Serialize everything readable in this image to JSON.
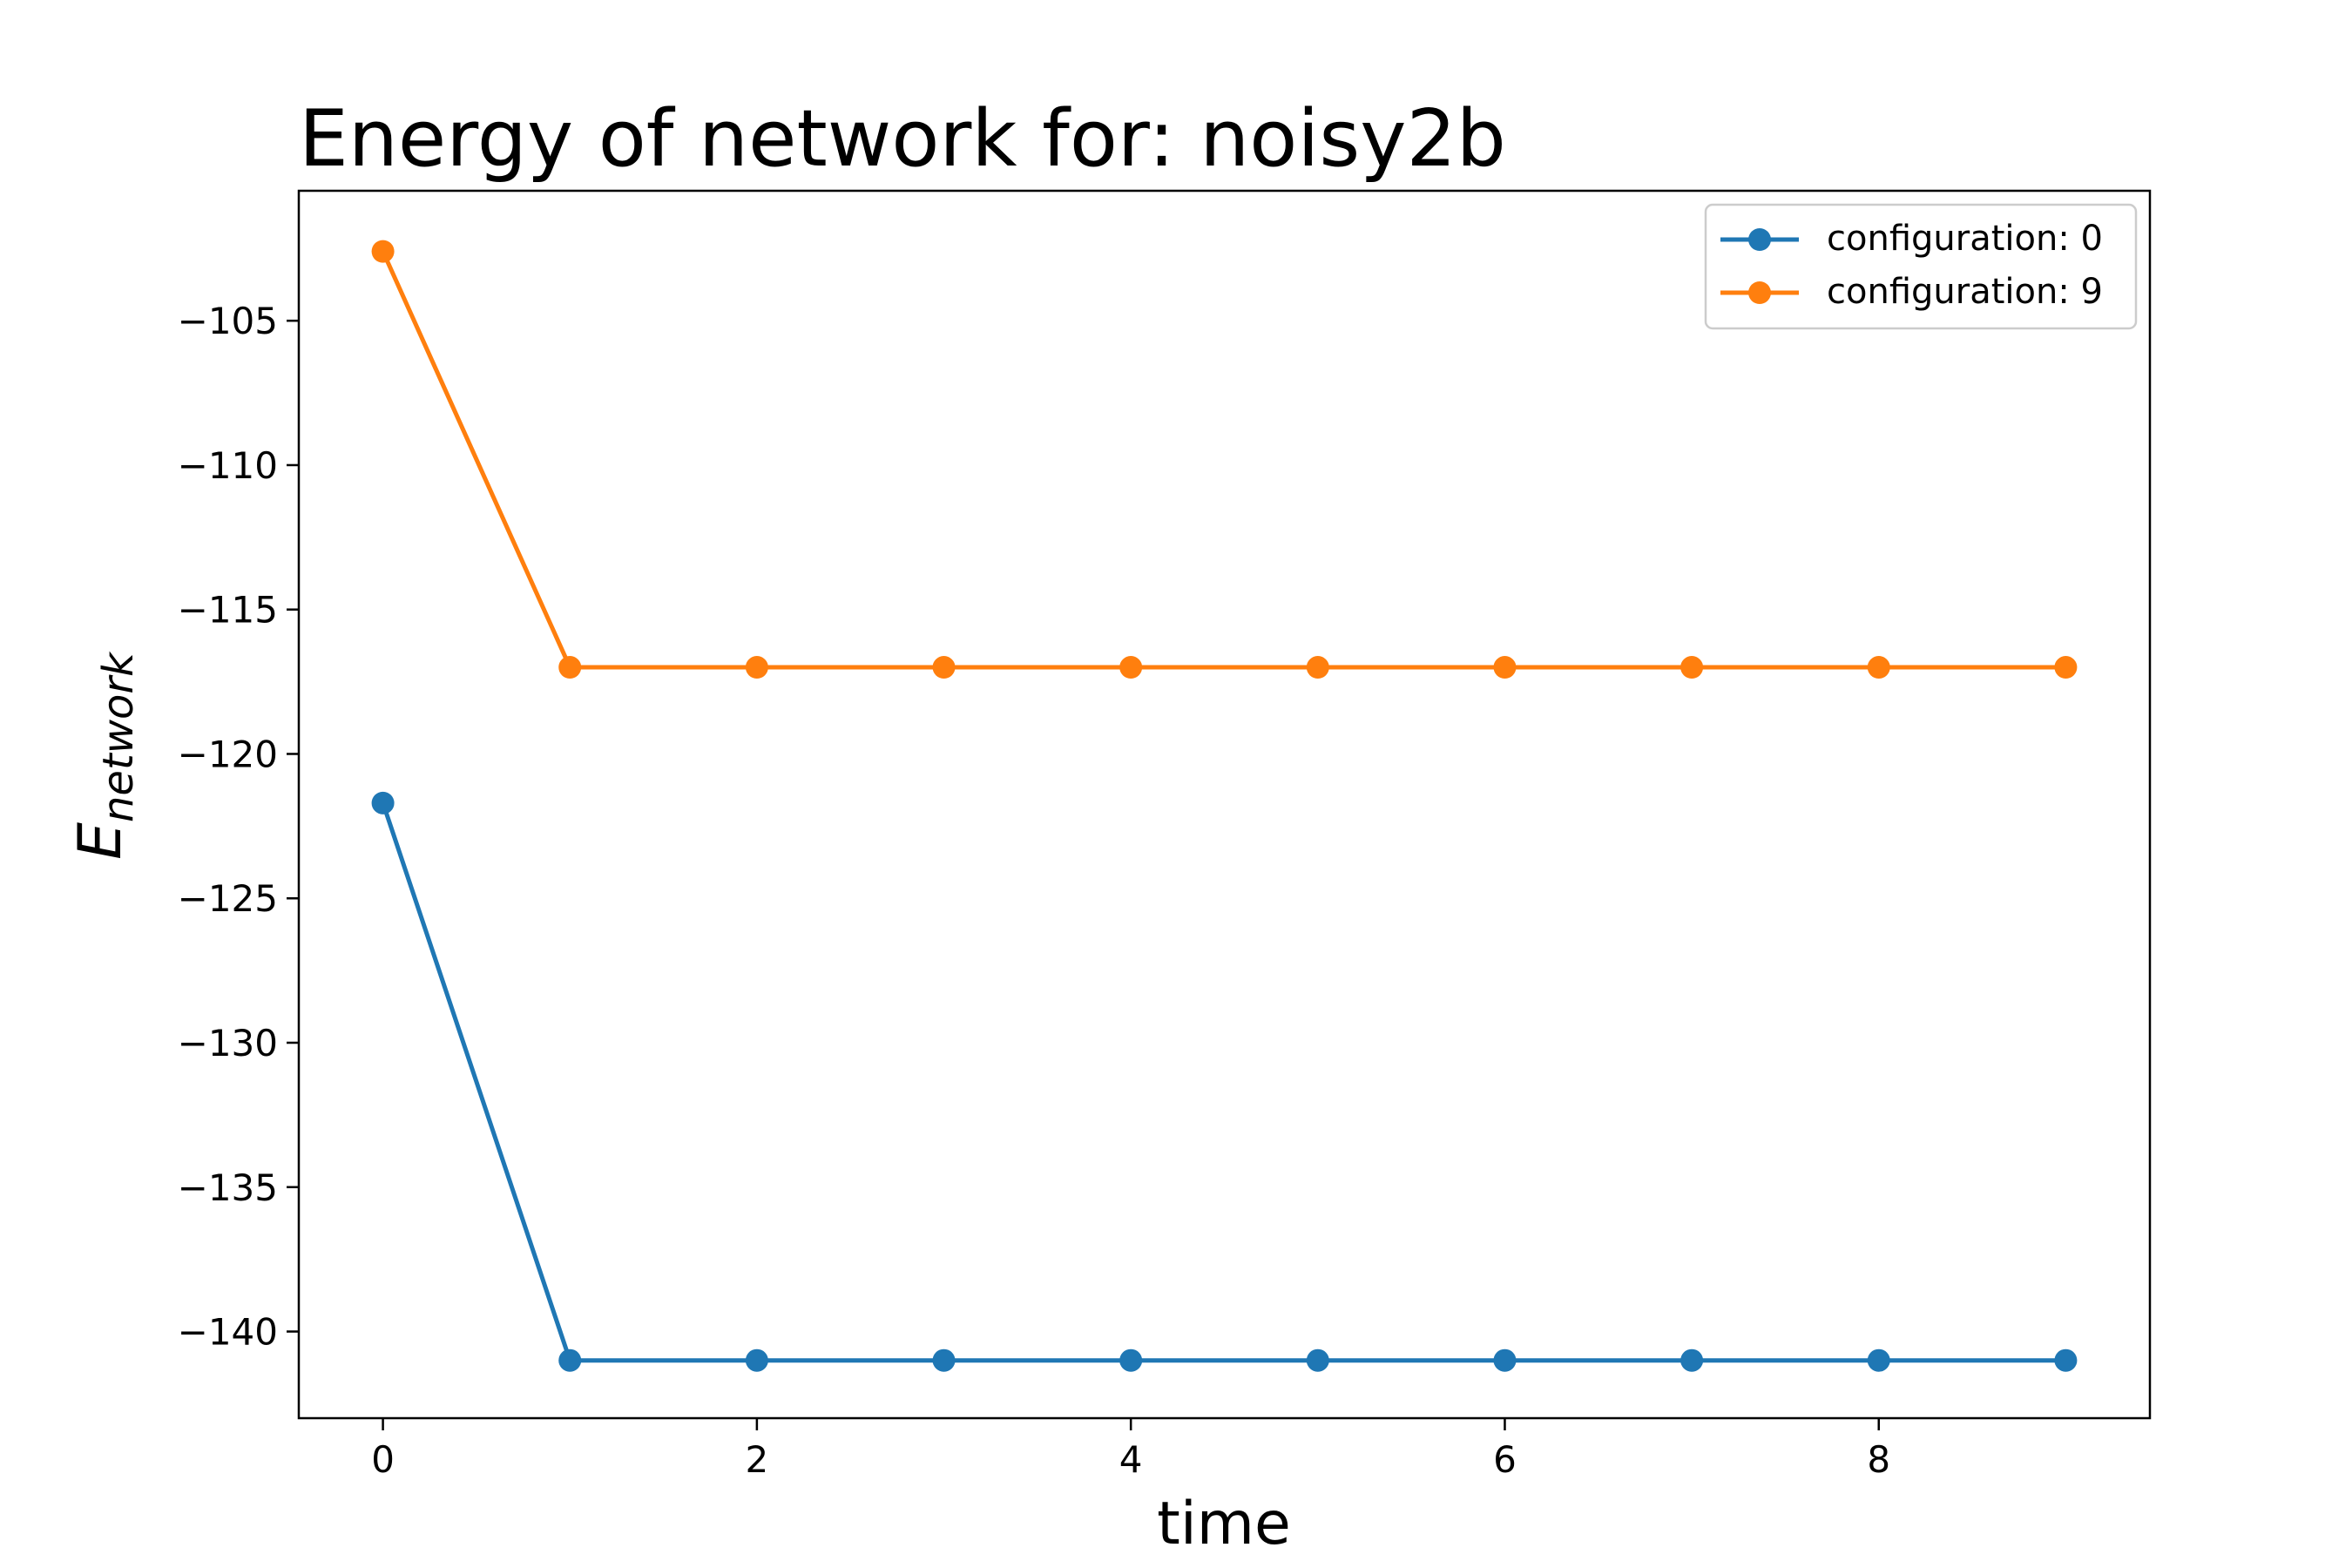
{
  "chart_data": {
    "type": "line",
    "title": "Energy of network for: noisy2b",
    "xlabel": "time",
    "ylabel_main": "E",
    "ylabel_sub": "network",
    "x": [
      0,
      1,
      2,
      3,
      4,
      5,
      6,
      7,
      8,
      9
    ],
    "xlim": [
      -0.45,
      9.45
    ],
    "ylim": [
      -143.0,
      -100.5
    ],
    "xticks": [
      0,
      2,
      4,
      6,
      8
    ],
    "yticks": [
      -105,
      -110,
      -115,
      -120,
      -125,
      -130,
      -135,
      -140
    ],
    "grid": false,
    "legend_position": "top-right",
    "series": [
      {
        "name": "configuration: 0",
        "color": "#1f77b4",
        "values": [
          -121.7,
          -141,
          -141,
          -141,
          -141,
          -141,
          -141,
          -141,
          -141,
          -141
        ]
      },
      {
        "name": "configuration: 9",
        "color": "#ff7f0e",
        "values": [
          -102.6,
          -117,
          -117,
          -117,
          -117,
          -117,
          -117,
          -117,
          -117,
          -117
        ]
      }
    ]
  }
}
